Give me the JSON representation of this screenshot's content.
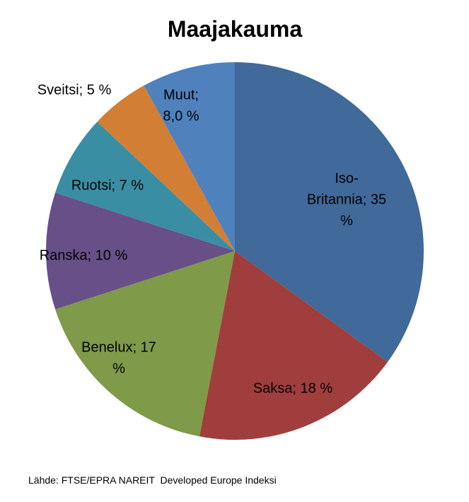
{
  "chart_data": {
    "type": "pie",
    "title": "Maajakauma",
    "values": [
      35,
      18,
      17,
      10,
      7,
      5,
      8.0
    ],
    "value_labels": [
      "Iso-Britannia; 35 %",
      "Saksa; 18 %",
      "Benelux; 17 %",
      "Ranska; 10 %",
      "Ruotsi; 7 %",
      "Sveitsi; 5 %",
      "Muut; 8,0 %"
    ],
    "colors": [
      "#41699a",
      "#a03e3d",
      "#7f9a48",
      "#684f88",
      "#3a8ea4",
      "#d37e35",
      "#4f81bd"
    ],
    "source": "Lähde: FTSE/EPRA NAREIT  Developed Europe Indeksi"
  }
}
